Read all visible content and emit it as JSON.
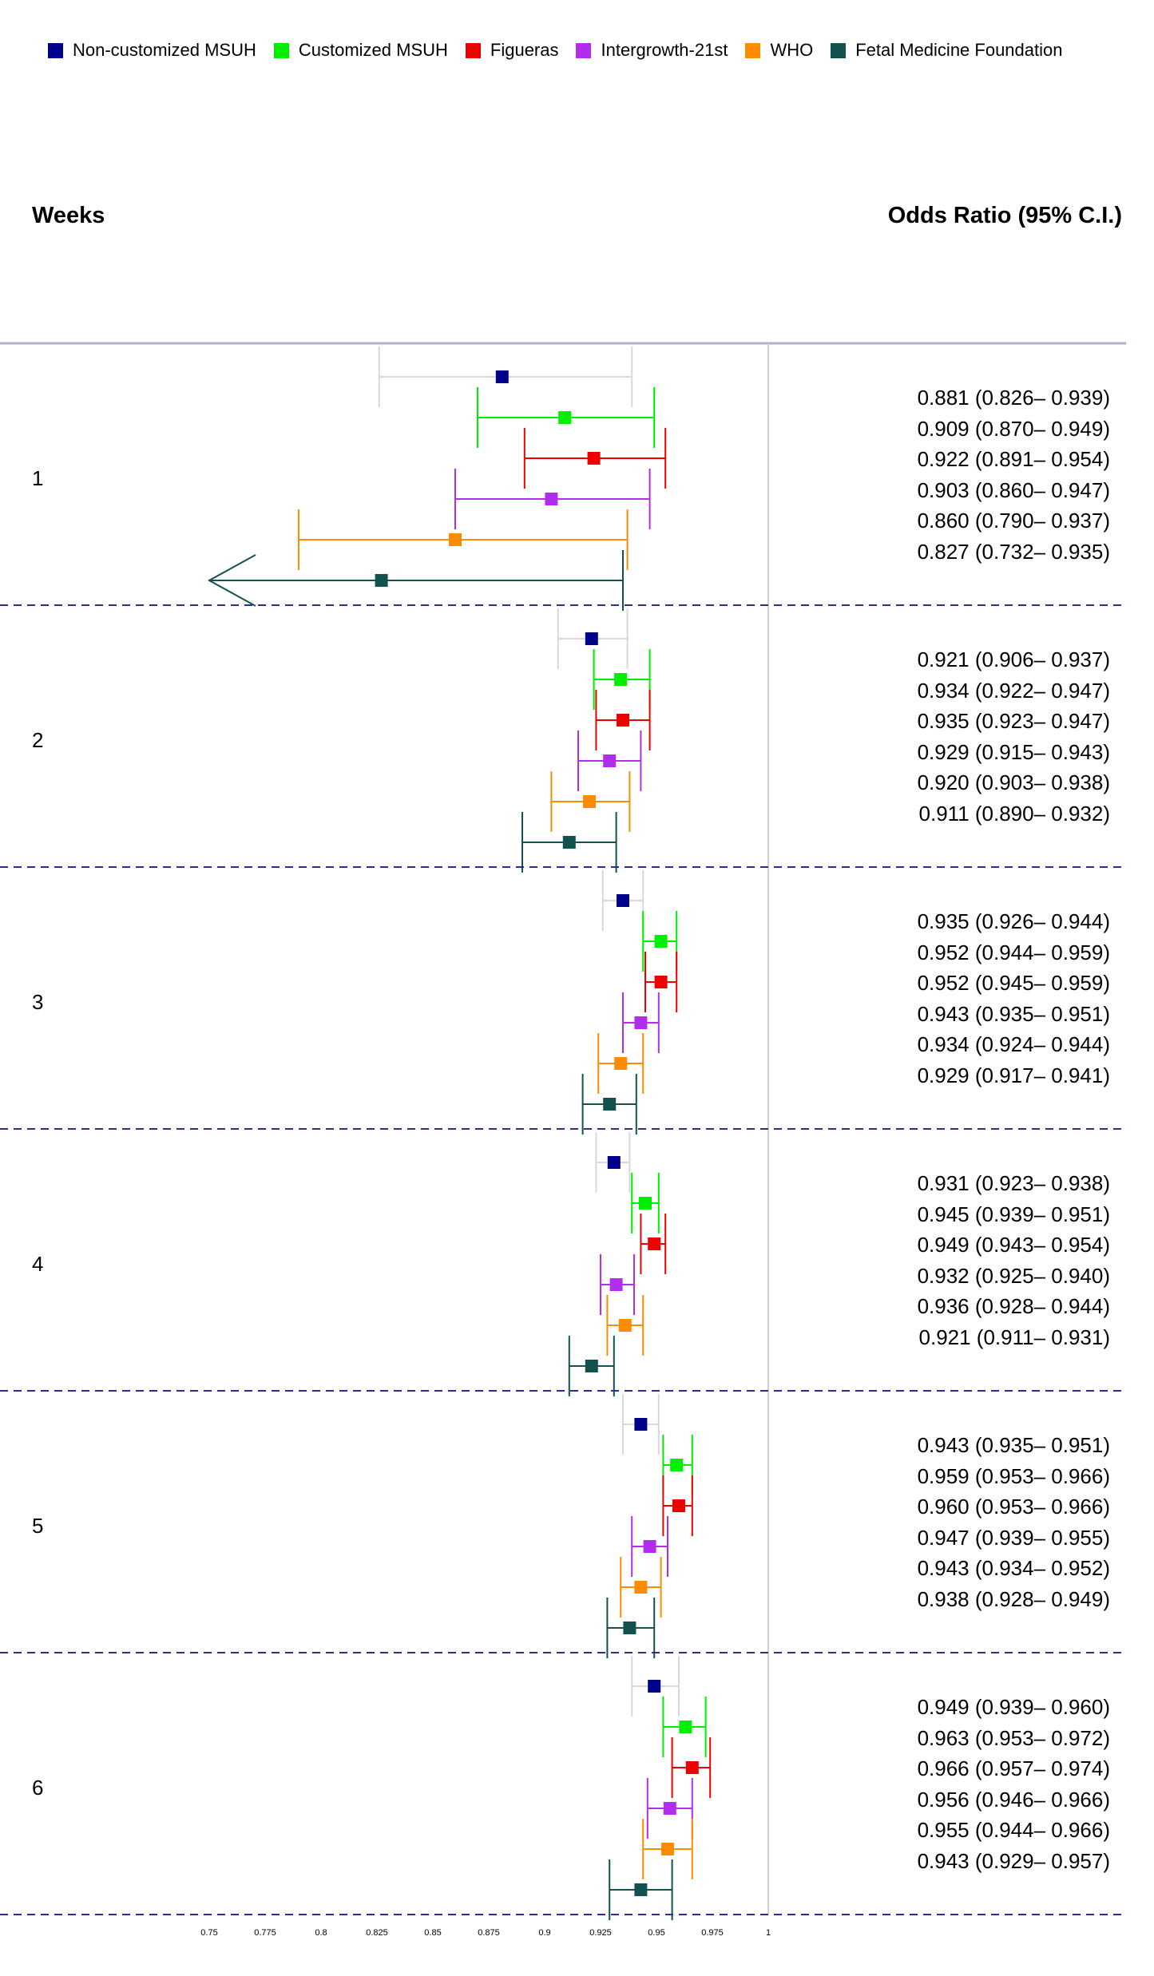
{
  "legend": [
    {
      "name": "Non-customized MSUH",
      "color": "#00008B"
    },
    {
      "name": "Customized MSUH",
      "color": "#00EE00"
    },
    {
      "name": "Figueras",
      "color": "#EE0000"
    },
    {
      "name": "Intergrowth-21st",
      "color": "#B22EEE"
    },
    {
      "name": "WHO",
      "color": "#FF8C00"
    },
    {
      "name": "Fetal Medicine Foundation",
      "color": "#12524E"
    }
  ],
  "headers": {
    "left": "Weeks",
    "right": "Odds Ratio (95% C.I.)"
  },
  "chart_data": {
    "type": "forest",
    "xlabel": "",
    "ylabel": "Weeks",
    "xlim": [
      0.75,
      1.0
    ],
    "reference_line": 1.0,
    "ticks": [
      {
        "value": 0.75,
        "label": "0.75"
      },
      {
        "value": 0.775,
        "label": "0.775"
      },
      {
        "value": 0.8,
        "label": "0.8"
      },
      {
        "value": 0.825,
        "label": "0.825"
      },
      {
        "value": 0.85,
        "label": "0.85"
      },
      {
        "value": 0.875,
        "label": "0.875"
      },
      {
        "value": 0.9,
        "label": "0.9"
      },
      {
        "value": 0.925,
        "label": "0.925"
      },
      {
        "value": 0.95,
        "label": "0.95"
      },
      {
        "value": 0.975,
        "label": "0.975"
      },
      {
        "value": 1.0,
        "label": "1"
      }
    ],
    "series": [
      "Non-customized MSUH",
      "Customized MSUH",
      "Figueras",
      "Intergrowth-21st",
      "WHO",
      "Fetal Medicine Foundation"
    ],
    "groups": [
      {
        "week": "1",
        "rows": [
          {
            "or": 0.881,
            "lo": 0.826,
            "hi": 0.939,
            "text": "0.881 (0.826– 0.939)"
          },
          {
            "or": 0.909,
            "lo": 0.87,
            "hi": 0.949,
            "text": "0.909 (0.870– 0.949)"
          },
          {
            "or": 0.922,
            "lo": 0.891,
            "hi": 0.954,
            "text": "0.922 (0.891– 0.954)"
          },
          {
            "or": 0.903,
            "lo": 0.86,
            "hi": 0.947,
            "text": "0.903 (0.860– 0.947)"
          },
          {
            "or": 0.86,
            "lo": 0.79,
            "hi": 0.937,
            "text": "0.860 (0.790– 0.937)"
          },
          {
            "or": 0.827,
            "lo": 0.732,
            "hi": 0.935,
            "text": "0.827 (0.732– 0.935)"
          }
        ]
      },
      {
        "week": "2",
        "rows": [
          {
            "or": 0.921,
            "lo": 0.906,
            "hi": 0.937,
            "text": "0.921 (0.906– 0.937)"
          },
          {
            "or": 0.934,
            "lo": 0.922,
            "hi": 0.947,
            "text": "0.934 (0.922– 0.947)"
          },
          {
            "or": 0.935,
            "lo": 0.923,
            "hi": 0.947,
            "text": "0.935 (0.923– 0.947)"
          },
          {
            "or": 0.929,
            "lo": 0.915,
            "hi": 0.943,
            "text": "0.929 (0.915– 0.943)"
          },
          {
            "or": 0.92,
            "lo": 0.903,
            "hi": 0.938,
            "text": "0.920 (0.903– 0.938)"
          },
          {
            "or": 0.911,
            "lo": 0.89,
            "hi": 0.932,
            "text": "0.911 (0.890– 0.932)"
          }
        ]
      },
      {
        "week": "3",
        "rows": [
          {
            "or": 0.935,
            "lo": 0.926,
            "hi": 0.944,
            "text": "0.935 (0.926– 0.944)"
          },
          {
            "or": 0.952,
            "lo": 0.944,
            "hi": 0.959,
            "text": "0.952 (0.944– 0.959)"
          },
          {
            "or": 0.952,
            "lo": 0.945,
            "hi": 0.959,
            "text": "0.952 (0.945– 0.959)"
          },
          {
            "or": 0.943,
            "lo": 0.935,
            "hi": 0.951,
            "text": "0.943 (0.935– 0.951)"
          },
          {
            "or": 0.934,
            "lo": 0.924,
            "hi": 0.944,
            "text": "0.934 (0.924– 0.944)"
          },
          {
            "or": 0.929,
            "lo": 0.917,
            "hi": 0.941,
            "text": "0.929 (0.917– 0.941)"
          }
        ]
      },
      {
        "week": "4",
        "rows": [
          {
            "or": 0.931,
            "lo": 0.923,
            "hi": 0.938,
            "text": "0.931 (0.923– 0.938)"
          },
          {
            "or": 0.945,
            "lo": 0.939,
            "hi": 0.951,
            "text": "0.945 (0.939– 0.951)"
          },
          {
            "or": 0.949,
            "lo": 0.943,
            "hi": 0.954,
            "text": "0.949 (0.943– 0.954)"
          },
          {
            "or": 0.932,
            "lo": 0.925,
            "hi": 0.94,
            "text": "0.932 (0.925– 0.940)"
          },
          {
            "or": 0.936,
            "lo": 0.928,
            "hi": 0.944,
            "text": "0.936 (0.928– 0.944)"
          },
          {
            "or": 0.921,
            "lo": 0.911,
            "hi": 0.931,
            "text": "0.921 (0.911– 0.931)"
          }
        ]
      },
      {
        "week": "5",
        "rows": [
          {
            "or": 0.943,
            "lo": 0.935,
            "hi": 0.951,
            "text": "0.943 (0.935– 0.951)"
          },
          {
            "or": 0.959,
            "lo": 0.953,
            "hi": 0.966,
            "text": "0.959 (0.953– 0.966)"
          },
          {
            "or": 0.96,
            "lo": 0.953,
            "hi": 0.966,
            "text": "0.960 (0.953– 0.966)"
          },
          {
            "or": 0.947,
            "lo": 0.939,
            "hi": 0.955,
            "text": "0.947 (0.939– 0.955)"
          },
          {
            "or": 0.943,
            "lo": 0.934,
            "hi": 0.952,
            "text": "0.943 (0.934– 0.952)"
          },
          {
            "or": 0.938,
            "lo": 0.928,
            "hi": 0.949,
            "text": "0.938 (0.928– 0.949)"
          }
        ]
      },
      {
        "week": "6",
        "rows": [
          {
            "or": 0.949,
            "lo": 0.939,
            "hi": 0.96,
            "text": "0.949 (0.939– 0.960)"
          },
          {
            "or": 0.963,
            "lo": 0.953,
            "hi": 0.972,
            "text": "0.963 (0.953– 0.972)"
          },
          {
            "or": 0.966,
            "lo": 0.957,
            "hi": 0.974,
            "text": "0.966 (0.957– 0.974)"
          },
          {
            "or": 0.956,
            "lo": 0.946,
            "hi": 0.966,
            "text": "0.956 (0.946– 0.966)"
          },
          {
            "or": 0.955,
            "lo": 0.944,
            "hi": 0.966,
            "text": "0.955 (0.944– 0.966)"
          },
          {
            "or": 0.943,
            "lo": 0.929,
            "hi": 0.957,
            "text": "0.943 (0.929– 0.957)"
          }
        ]
      }
    ]
  }
}
